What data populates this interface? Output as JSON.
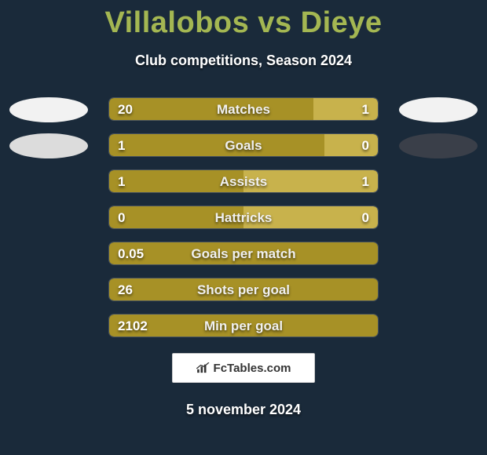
{
  "title": "Villalobos vs Dieye",
  "title_color": "#a4b752",
  "subtitle": "Club competitions, Season 2024",
  "background_color": "#1a2a3a",
  "bar": {
    "track_border_color": "rgba(160,160,160,0.35)",
    "left_fill": "#a79126",
    "right_fill": "#c8b24c",
    "label_color": "#f0f0f0",
    "value_color": "#ffffff"
  },
  "logos": {
    "row0_left_bg": "#f2f2f2",
    "row0_right_bg": "#f2f2f2",
    "row1_left_bg": "#dcdcdc",
    "row1_right_bg": "#3a3f49"
  },
  "brand_text": "FcTables.com",
  "date": "5 november 2024",
  "rows": [
    {
      "label": "Matches",
      "left": "20",
      "right": "1",
      "left_pct": 76,
      "right_pct": 24
    },
    {
      "label": "Goals",
      "left": "1",
      "right": "0",
      "left_pct": 80,
      "right_pct": 20
    },
    {
      "label": "Assists",
      "left": "1",
      "right": "1",
      "left_pct": 50,
      "right_pct": 50
    },
    {
      "label": "Hattricks",
      "left": "0",
      "right": "0",
      "left_pct": 50,
      "right_pct": 50
    },
    {
      "label": "Goals per match",
      "left": "0.05",
      "right": "",
      "left_pct": 100,
      "right_pct": 0
    },
    {
      "label": "Shots per goal",
      "left": "26",
      "right": "",
      "left_pct": 100,
      "right_pct": 0
    },
    {
      "label": "Min per goal",
      "left": "2102",
      "right": "",
      "left_pct": 100,
      "right_pct": 0
    }
  ]
}
